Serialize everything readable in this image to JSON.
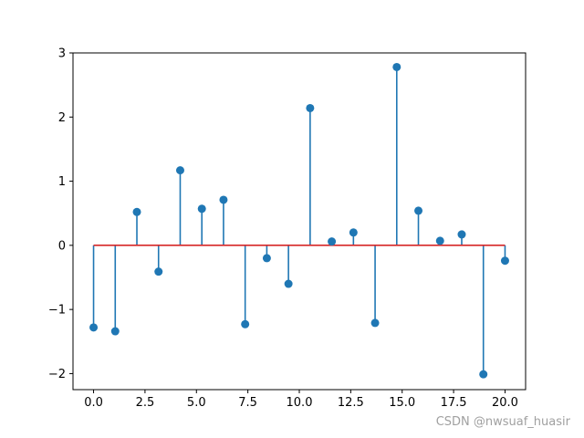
{
  "chart_data": {
    "type": "stem",
    "x": [
      0.0,
      1.0526,
      2.1053,
      3.1579,
      4.2105,
      5.2632,
      6.3158,
      7.3684,
      8.4211,
      9.4737,
      10.5263,
      11.5789,
      12.6316,
      13.6842,
      14.7368,
      15.7895,
      16.8421,
      17.8947,
      18.9474,
      20.0
    ],
    "values": [
      -1.28,
      -1.34,
      0.52,
      -0.41,
      1.17,
      0.57,
      0.71,
      -1.23,
      -0.2,
      -0.6,
      2.14,
      0.06,
      0.2,
      -1.21,
      2.78,
      0.54,
      0.07,
      0.17,
      -2.01,
      -0.24
    ],
    "baseline": 0,
    "xlim": [
      -1.0,
      21.0
    ],
    "ylim": [
      -2.25,
      3.0
    ],
    "xticks": [
      0.0,
      2.5,
      5.0,
      7.5,
      10.0,
      12.5,
      15.0,
      17.5,
      20.0
    ],
    "xtick_labels": [
      "0.0",
      "2.5",
      "5.0",
      "7.5",
      "10.0",
      "12.5",
      "15.0",
      "17.5",
      "20.0"
    ],
    "yticks": [
      -2,
      -1,
      0,
      1,
      2,
      3
    ],
    "ytick_labels": [
      "−2",
      "−1",
      "0",
      "1",
      "2",
      "3"
    ],
    "title": "",
    "xlabel": "",
    "ylabel": "",
    "grid": false,
    "colors": {
      "stem": "#1f77b4",
      "marker": "#1f77b4",
      "baseline": "#d62728",
      "axes": "#000000"
    }
  },
  "watermark": "CSDN @nwsuaf_huasir"
}
